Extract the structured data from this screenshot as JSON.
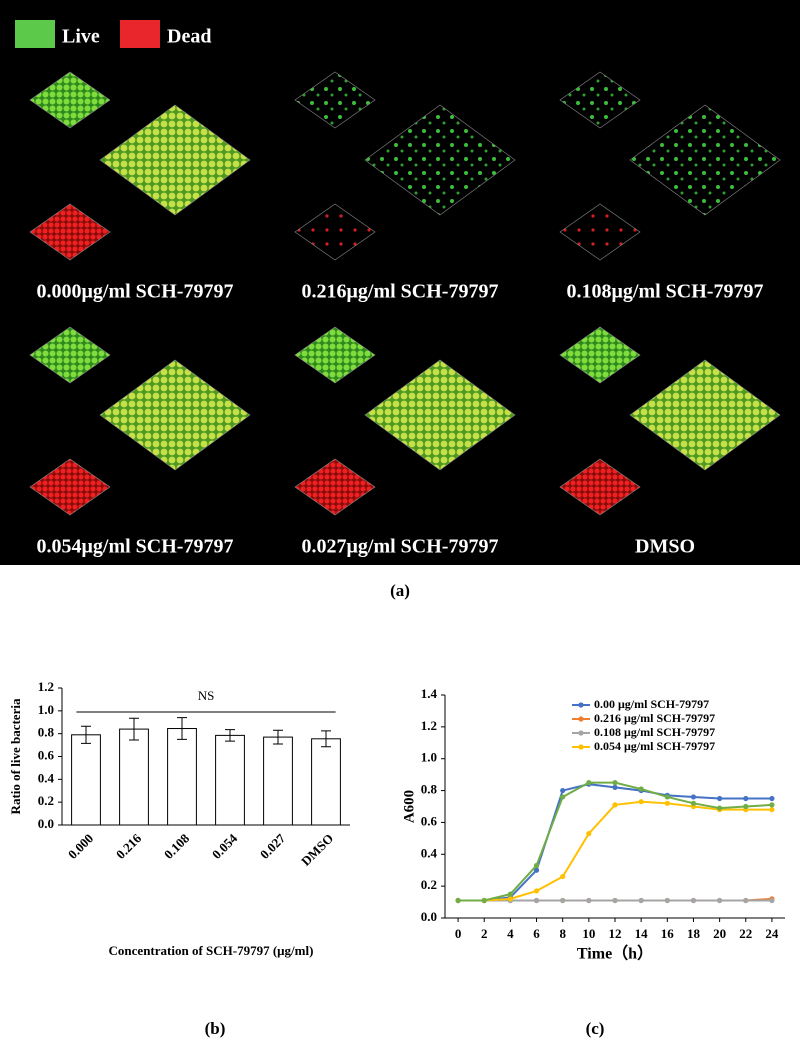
{
  "panel_a": {
    "legend": [
      "Live",
      "Dead"
    ],
    "labels": [
      "0.000μg/ml SCH-79797",
      "0.216μg/ml SCH-79797",
      "0.108μg/ml SCH-79797",
      "0.054μg/ml SCH-79797",
      "0.027μg/ml SCH-79797",
      "DMSO"
    ],
    "caption": "(a)"
  },
  "chart_data": [
    {
      "type": "bar",
      "caption": "(b)",
      "annotation": "NS",
      "xlabel": "Concentration of SCH-79797 (μg/ml)",
      "ylabel": "Ratio of live bacteria",
      "categories": [
        "0.000",
        "0.216",
        "0.108",
        "0.054",
        "0.027",
        "DMSO"
      ],
      "values": [
        0.79,
        0.84,
        0.845,
        0.785,
        0.77,
        0.755
      ],
      "errors": [
        0.075,
        0.095,
        0.095,
        0.05,
        0.06,
        0.07
      ],
      "color": "#ffffff",
      "ylim": [
        0,
        1.2
      ],
      "yticks": [
        {
          "value": 0,
          "label": "0.0"
        },
        0.2,
        0.4,
        0.6,
        0.8,
        {
          "value": 1,
          "label": "1.0"
        },
        1.2
      ]
    },
    {
      "type": "line",
      "caption": "(c)",
      "xlabel": "Time（h）",
      "ylabel": "A600",
      "x": [
        0,
        2,
        4,
        6,
        8,
        10,
        12,
        14,
        16,
        18,
        20,
        22,
        24
      ],
      "series": [
        {
          "name": "0.00 μg/ml SCH-79797",
          "color": "#4472c4",
          "values": [
            0.11,
            0.11,
            0.13,
            0.3,
            0.8,
            0.84,
            0.82,
            0.8,
            0.77,
            0.76,
            0.75,
            0.75,
            0.75
          ]
        },
        {
          "name": "0.216 μg/ml SCH-79797",
          "color": "#ed7d31",
          "values": [
            0.11,
            0.11,
            0.11,
            0.11,
            0.11,
            0.11,
            0.11,
            0.11,
            0.11,
            0.11,
            0.11,
            0.11,
            0.12
          ]
        },
        {
          "name": "0.108 μg/ml SCH-79797",
          "color": "#a5a5a5",
          "values": [
            0.11,
            0.11,
            0.11,
            0.11,
            0.11,
            0.11,
            0.11,
            0.11,
            0.11,
            0.11,
            0.11,
            0.11,
            0.11
          ]
        },
        {
          "name": "0.054 μg/ml SCH-79797",
          "color": "#ffc000",
          "values": [
            0.11,
            0.11,
            0.12,
            0.17,
            0.26,
            0.53,
            0.71,
            0.73,
            0.72,
            0.7,
            0.68,
            0.68,
            0.68
          ]
        },
        {
          "color": "#70ad47",
          "values": [
            0.11,
            0.11,
            0.15,
            0.33,
            0.76,
            0.85,
            0.85,
            0.81,
            0.76,
            0.72,
            0.69,
            0.7,
            0.71
          ]
        }
      ],
      "xlim": [
        -1,
        25
      ],
      "xticks": [
        0,
        2,
        4,
        6,
        8,
        10,
        12,
        14,
        16,
        18,
        20,
        22,
        24
      ],
      "ylim": [
        0,
        1.4
      ],
      "yticks": [
        {
          "value": 0,
          "label": "0.0"
        },
        0.2,
        0.4,
        0.6,
        0.8,
        {
          "value": 1,
          "label": "1.0"
        },
        1.2,
        1.4
      ]
    }
  ]
}
